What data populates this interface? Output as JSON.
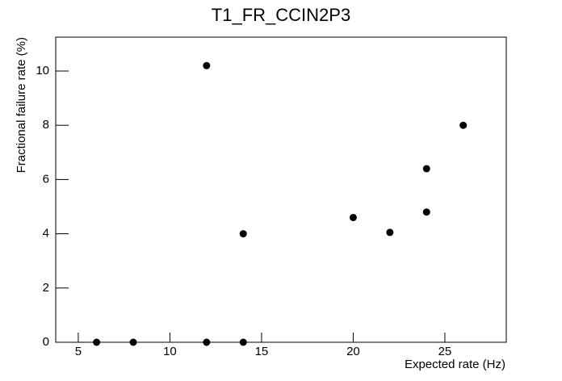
{
  "chart_data": {
    "type": "scatter",
    "title": "T1_FR_CCIN2P3",
    "x_label": "Expected rate (Hz)",
    "y_label": "Fractional failure rate (%)",
    "x": [
      6,
      8,
      12,
      14,
      12,
      14,
      20,
      22,
      24,
      24,
      26
    ],
    "values": [
      0,
      0,
      0,
      0,
      10.2,
      4.0,
      4.6,
      4.05,
      4.8,
      6.4,
      8.0
    ],
    "color": "#000000",
    "xlim": [
      3.77,
      28.35
    ],
    "xticks": [
      5,
      10,
      15,
      20,
      25
    ],
    "ylim": [
      0,
      11.25
    ],
    "yticks": [
      0,
      2,
      4,
      6,
      8,
      10
    ]
  }
}
